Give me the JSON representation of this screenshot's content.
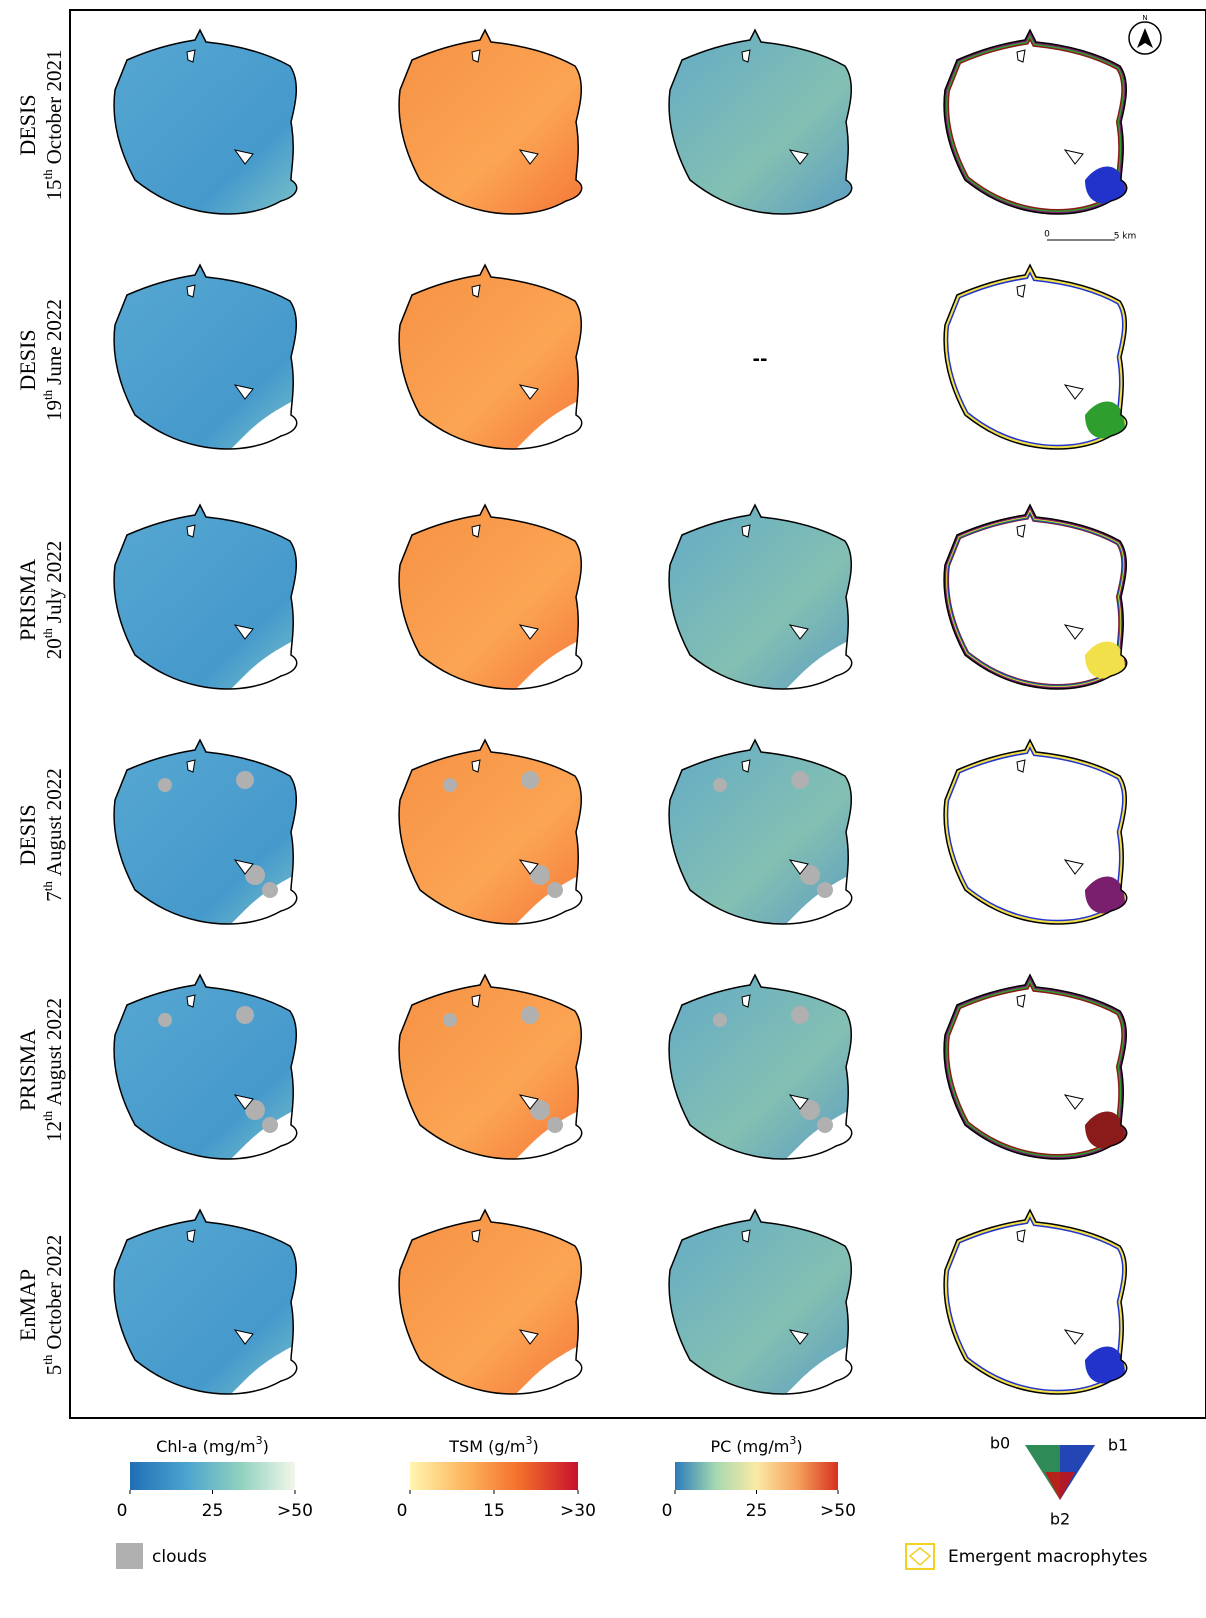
{
  "rows": [
    {
      "sensor": "DESIS",
      "day": "15",
      "suffix": "th",
      "date": "October 2021"
    },
    {
      "sensor": "DESIS",
      "day": "19",
      "suffix": "th",
      "date": "June 2022"
    },
    {
      "sensor": "PRISMA",
      "day": "20",
      "suffix": "th",
      "date": "July 2022"
    },
    {
      "sensor": "DESIS",
      "day": "7",
      "suffix": "th",
      "date": "August 2022"
    },
    {
      "sensor": "PRISMA",
      "day": "12",
      "suffix": "th",
      "date": "August 2022"
    },
    {
      "sensor": "EnMAP",
      "day": "5",
      "suffix": "th",
      "date": "October 2022"
    }
  ],
  "missing_panel": "--",
  "scale_bar": {
    "start": "0",
    "end": "5 km"
  },
  "north": "N",
  "legends": [
    {
      "title": "Chl-a (mg/m",
      "sup": "3",
      "close": ")",
      "lim": [
        0,
        50
      ],
      "ticks": [
        0,
        25,
        {
          "value": 50,
          "label": ">50"
        }
      ],
      "colors": [
        "#1f6fb5",
        "#4aa3cf",
        "#8fd0c0",
        "#f2f7ea"
      ]
    },
    {
      "title": "TSM (g/m",
      "sup": "3",
      "close": ")",
      "lim": [
        0,
        30
      ],
      "ticks": [
        0,
        15,
        {
          "value": 30,
          "label": ">30"
        }
      ],
      "colors": [
        "#fff6b0",
        "#fdb45c",
        "#f26b2a",
        "#c8102e"
      ]
    },
    {
      "title": "PC (mg/m",
      "sup": "3",
      "close": ")",
      "lim": [
        0,
        50
      ],
      "ticks": [
        0,
        25,
        {
          "value": 50,
          "label": ">50"
        }
      ],
      "colors": [
        "#2b7bba",
        "#a6d9b0",
        "#fbe9a6",
        "#f5a25d",
        "#d7301f"
      ]
    }
  ],
  "triangle": {
    "b0": "b0",
    "b1": "b1",
    "b2": "b2"
  },
  "clouds": "clouds",
  "emergent": "Emergent macrophytes"
}
